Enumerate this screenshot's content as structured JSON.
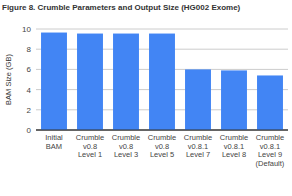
{
  "chart_data": {
    "type": "bar",
    "title": "Figure 8. Crumble Parameters and Output Size (HG002 Exome)",
    "y_label": "BAM Size (GB)",
    "categories": [
      "Initial\nBAM",
      "Crumble\nv0.8\nLevel 1",
      "Crumble\nv0.8\nLevel 3",
      "Crumble\nv0.8\nLevel 5",
      "Crumble\nv0.8.1\nLevel 7",
      "Crumble\nv0.8.1\nLevel 8",
      "Crumble\nv0.8.1\nLevel 9\n(Default)"
    ],
    "values": [
      9.65,
      9.55,
      9.55,
      9.55,
      6.0,
      5.9,
      5.4
    ],
    "color": "#4285f4",
    "ylim": [
      0,
      10
    ],
    "yticks": [
      0,
      2,
      4,
      6,
      8,
      10
    ],
    "grid": true
  }
}
